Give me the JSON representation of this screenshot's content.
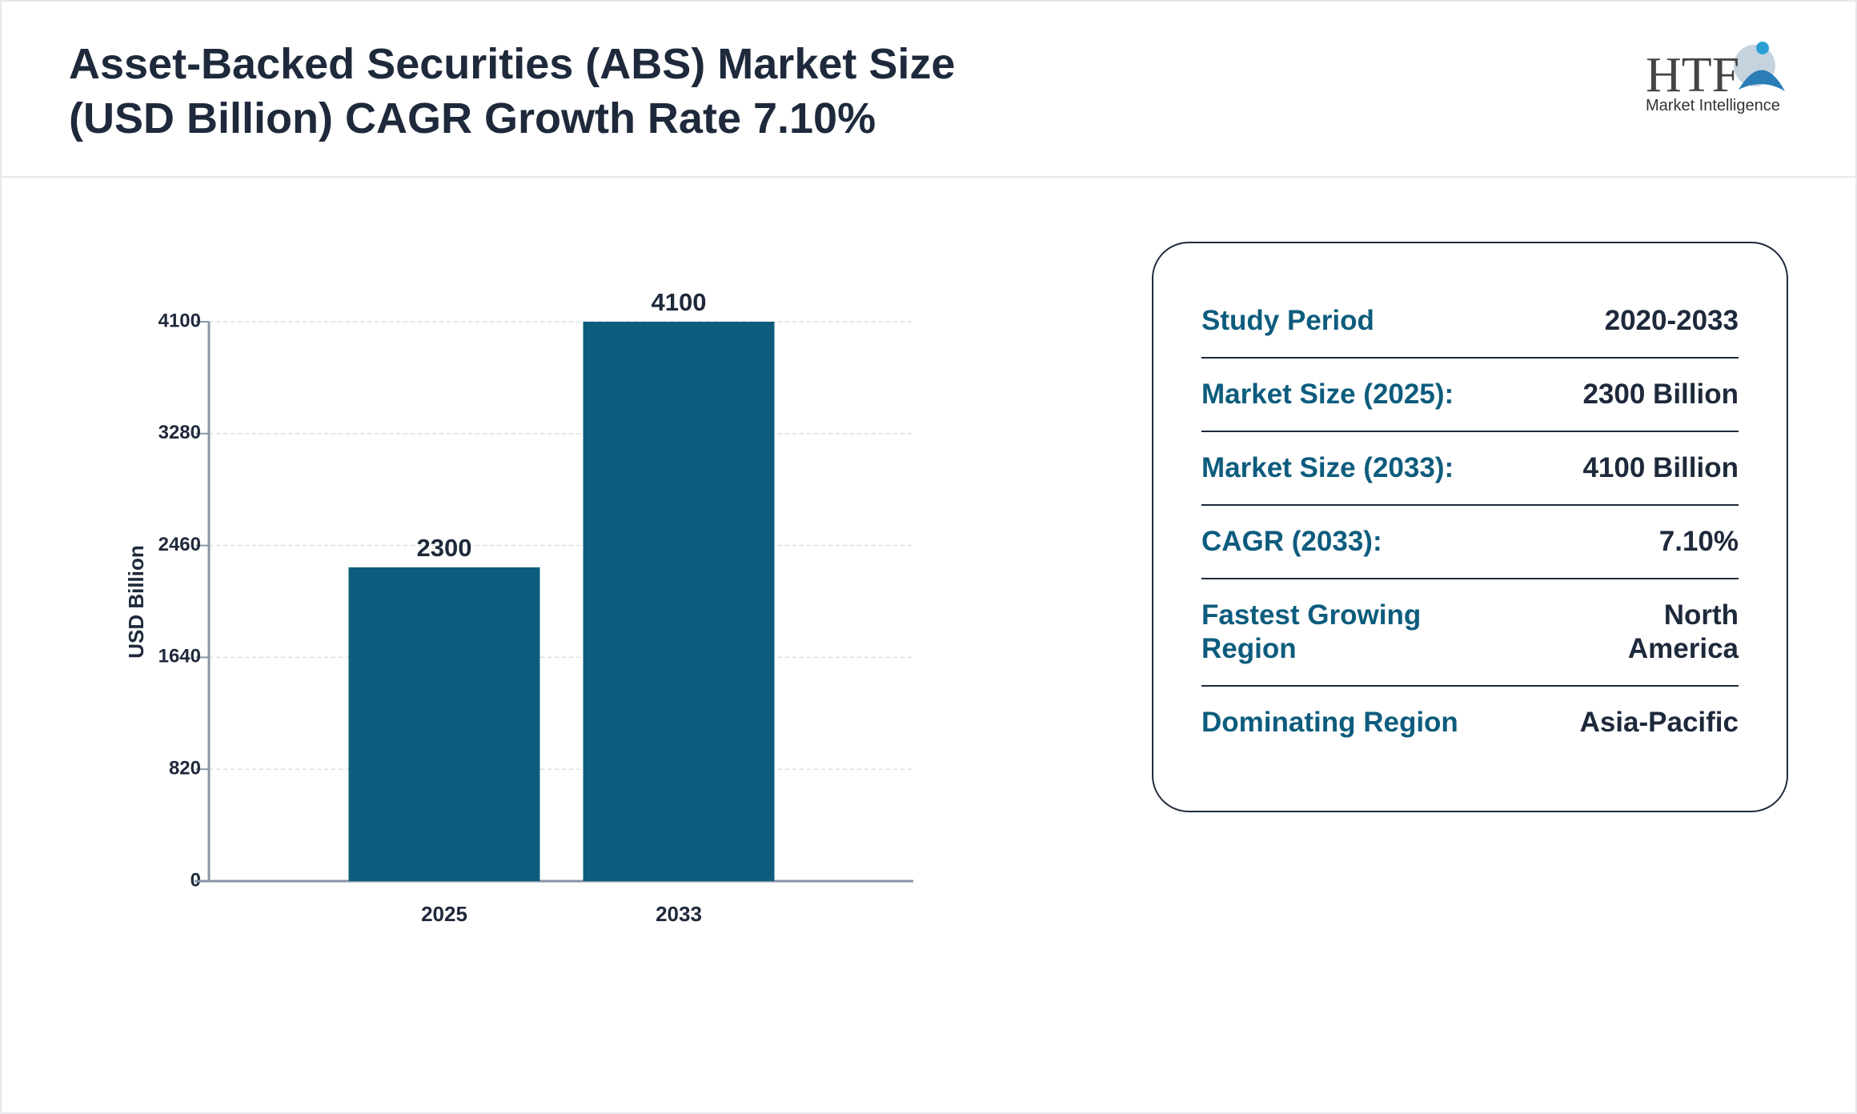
{
  "header": {
    "title": "Asset-Backed Securities (ABS) Market Size (USD Billion) CAGR Growth Rate 7.10%"
  },
  "logo": {
    "mark": "HTF",
    "subtitle": "Market Intelligence"
  },
  "chart_data": {
    "type": "bar",
    "y_label": "USD Billion",
    "categories": [
      "2025",
      "2033"
    ],
    "values": [
      2300,
      4100
    ],
    "color": "#0d5c7d",
    "ylim": [
      0,
      4100
    ],
    "yticks": [
      0,
      820,
      1640,
      2460,
      3280,
      4100
    ],
    "grid": true
  },
  "info": {
    "rows": [
      [
        "Study Period",
        "2020-2033"
      ],
      [
        "Market Size (2025):",
        "2300 Billion"
      ],
      [
        "Market Size (2033):",
        "4100 Billion"
      ],
      [
        "CAGR (2033):",
        "7.10%"
      ],
      [
        "Fastest Growing Region",
        "North America"
      ],
      [
        "Dominating Region",
        "Asia-Pacific"
      ]
    ]
  }
}
